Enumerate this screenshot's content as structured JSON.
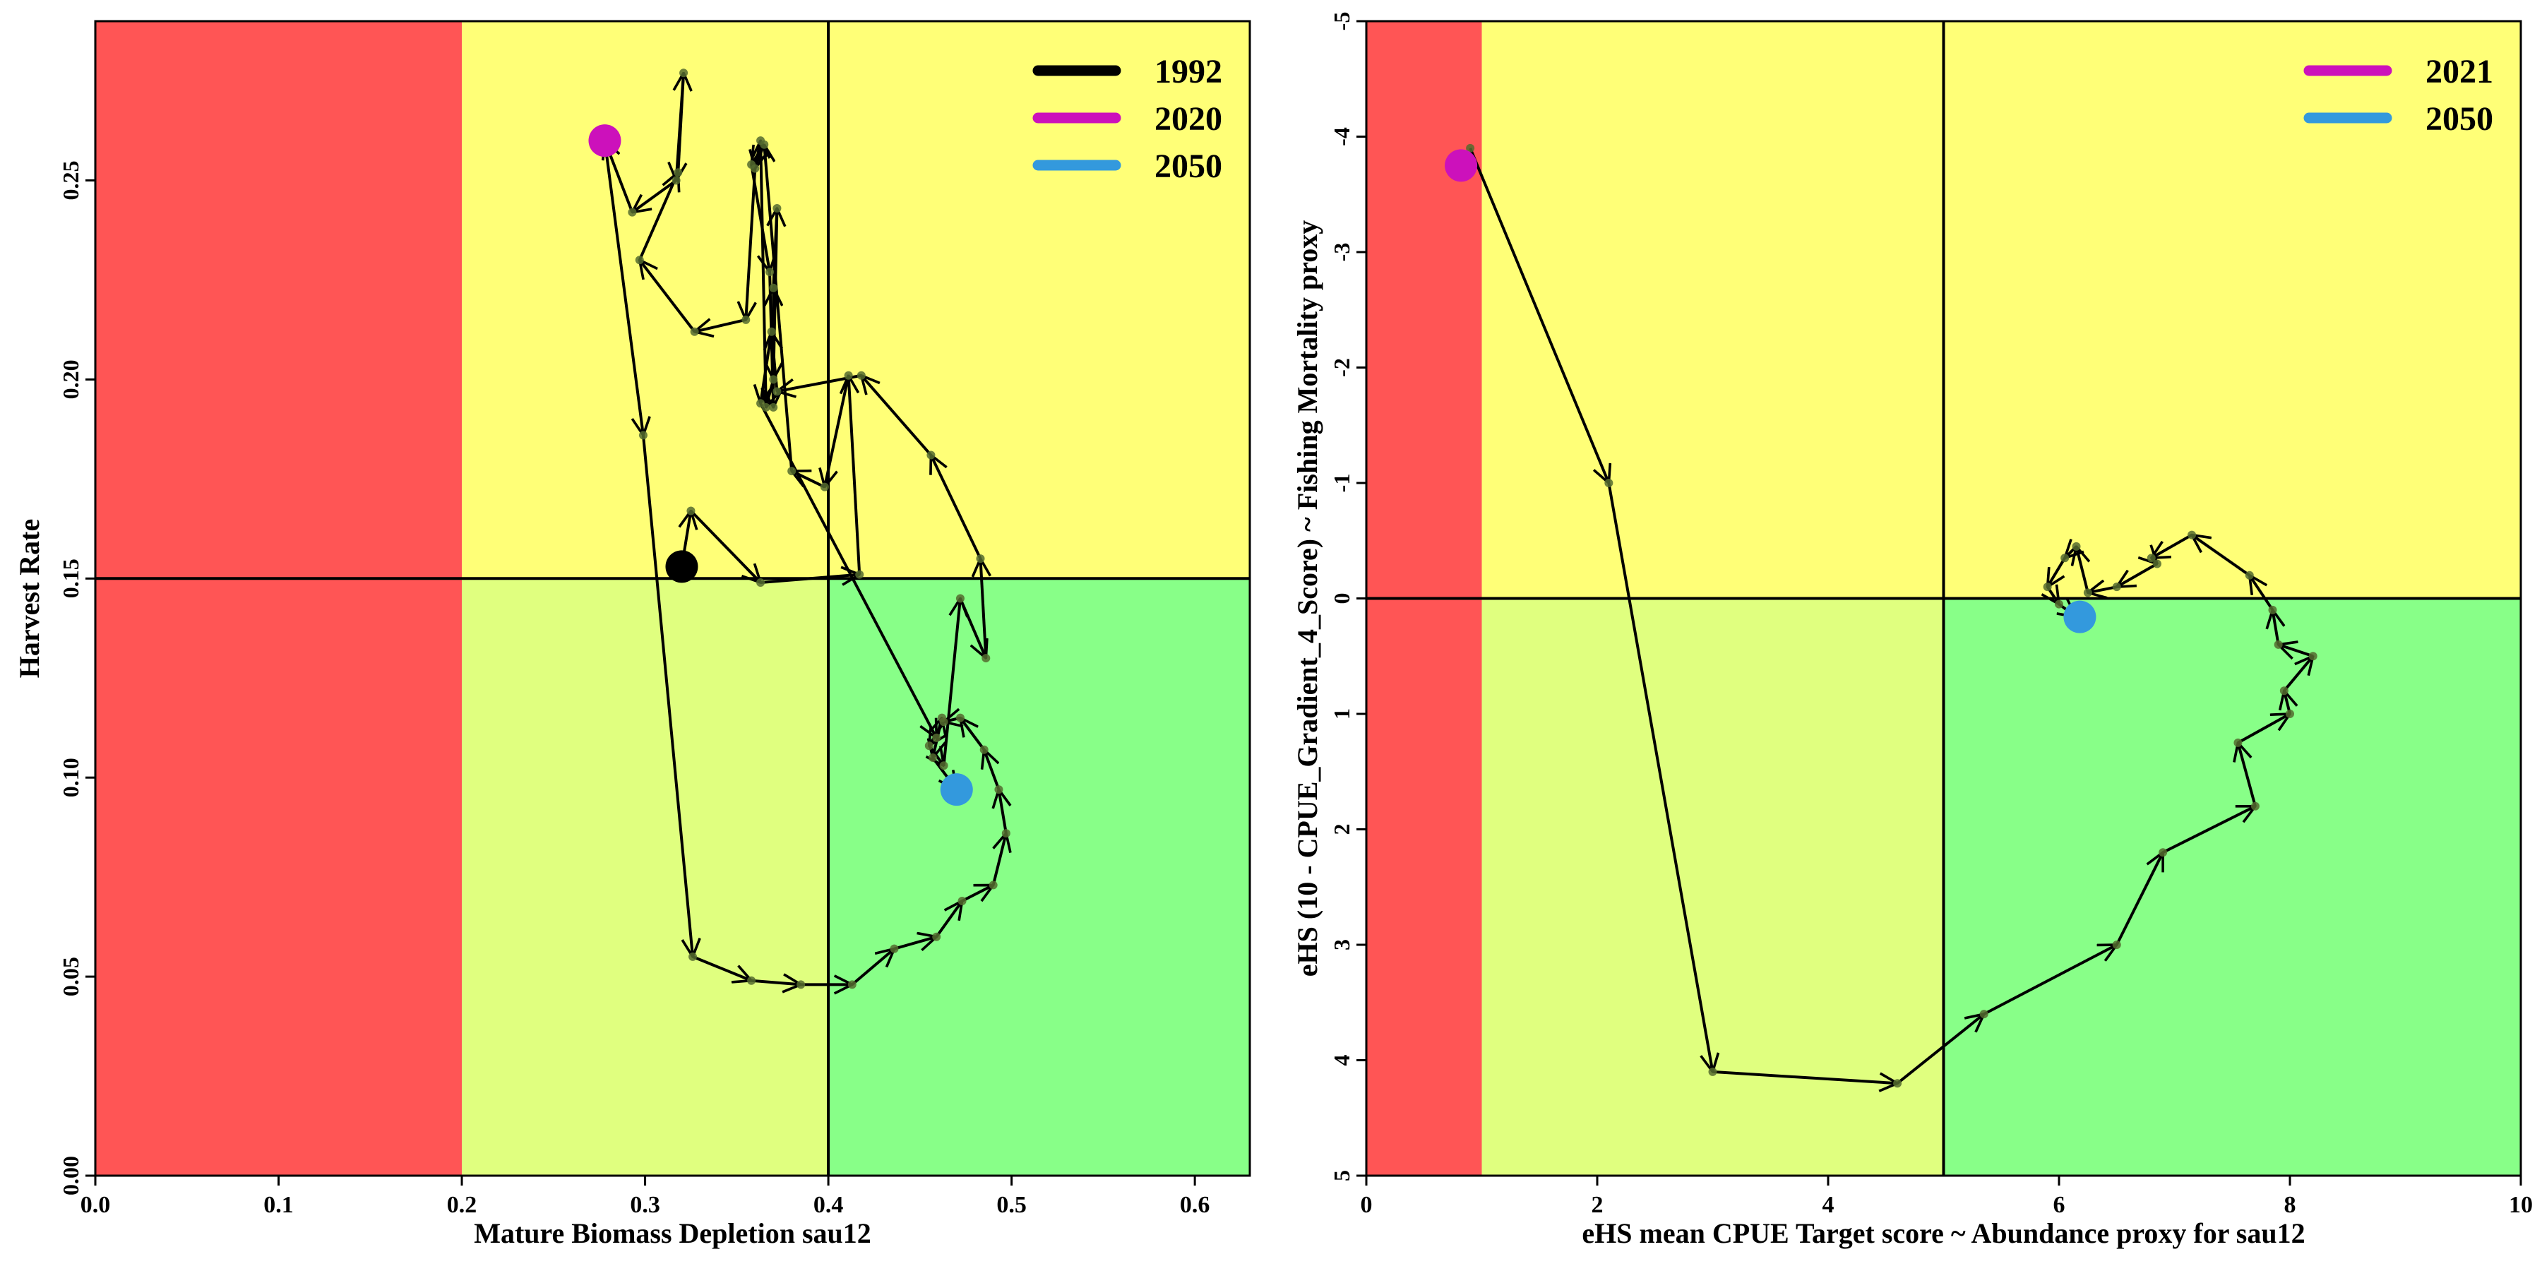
{
  "chart_data": [
    {
      "type": "scatter",
      "title": "",
      "xlabel": "Mature Biomass Depletion sau12",
      "ylabel": "Harvest Rate",
      "xlim": [
        0,
        0.63
      ],
      "ylim": [
        0,
        0.29
      ],
      "xticks": [
        0.0,
        0.1,
        0.2,
        0.3,
        0.4,
        0.5,
        0.6
      ],
      "xtick_labels": [
        "0.0",
        "0.1",
        "0.2",
        "0.3",
        "0.4",
        "0.5",
        "0.6"
      ],
      "yticks": [
        0.0,
        0.05,
        0.1,
        0.15,
        0.2,
        0.25
      ],
      "ytick_labels": [
        "0.00",
        "0.05",
        "0.10",
        "0.15",
        "0.20",
        "0.25"
      ],
      "grid": false,
      "legend_position": "top-right",
      "zones": [
        {
          "x": [
            0,
            0.2
          ],
          "y": [
            0,
            0.29
          ],
          "color": "#ff5555"
        },
        {
          "x": [
            0.2,
            0.63
          ],
          "y": [
            0.15,
            0.29
          ],
          "color": "#ffff77"
        },
        {
          "x": [
            0.2,
            0.4
          ],
          "y": [
            0,
            0.15
          ],
          "color": "#e0ff7f"
        },
        {
          "x": [
            0.4,
            0.63
          ],
          "y": [
            0,
            0.15
          ],
          "color": "#88ff88"
        }
      ],
      "reference_lines": {
        "x": 0.4,
        "y": 0.15
      },
      "legend": [
        {
          "label": "1992",
          "color": "#000000"
        },
        {
          "label": "2020",
          "color": "#cc11bb"
        },
        {
          "label": "2050",
          "color": "#3399dd"
        }
      ],
      "highlights": [
        {
          "label": "1992",
          "x": 0.32,
          "y": 0.153,
          "color": "#000000"
        },
        {
          "label": "2020",
          "x": 0.278,
          "y": 0.26,
          "color": "#cc11bb"
        },
        {
          "label": "2050",
          "x": 0.47,
          "y": 0.097,
          "color": "#3399dd"
        }
      ],
      "point_color": "#556b2f",
      "trajectory": [
        [
          0.32,
          0.153
        ],
        [
          0.325,
          0.167
        ],
        [
          0.363,
          0.149
        ],
        [
          0.417,
          0.151
        ],
        [
          0.411,
          0.201
        ],
        [
          0.398,
          0.173
        ],
        [
          0.38,
          0.177
        ],
        [
          0.365,
          0.259
        ],
        [
          0.358,
          0.254
        ],
        [
          0.368,
          0.227
        ],
        [
          0.37,
          0.193
        ],
        [
          0.37,
          0.223
        ],
        [
          0.372,
          0.243
        ],
        [
          0.37,
          0.2
        ],
        [
          0.366,
          0.193
        ],
        [
          0.363,
          0.26
        ],
        [
          0.36,
          0.253
        ],
        [
          0.355,
          0.215
        ],
        [
          0.327,
          0.212
        ],
        [
          0.297,
          0.23
        ],
        [
          0.318,
          0.252
        ],
        [
          0.321,
          0.277
        ],
        [
          0.317,
          0.25
        ],
        [
          0.293,
          0.242
        ],
        [
          0.278,
          0.26
        ],
        [
          0.299,
          0.186
        ],
        [
          0.326,
          0.055
        ],
        [
          0.358,
          0.049
        ],
        [
          0.385,
          0.048
        ],
        [
          0.413,
          0.048
        ],
        [
          0.436,
          0.057
        ],
        [
          0.459,
          0.06
        ],
        [
          0.473,
          0.069
        ],
        [
          0.49,
          0.073
        ],
        [
          0.497,
          0.086
        ],
        [
          0.493,
          0.097
        ],
        [
          0.485,
          0.107
        ],
        [
          0.472,
          0.115
        ],
        [
          0.463,
          0.114
        ],
        [
          0.455,
          0.108
        ],
        [
          0.463,
          0.103
        ],
        [
          0.472,
          0.145
        ],
        [
          0.486,
          0.13
        ],
        [
          0.483,
          0.155
        ],
        [
          0.456,
          0.181
        ],
        [
          0.418,
          0.201
        ],
        [
          0.372,
          0.197
        ],
        [
          0.369,
          0.212
        ],
        [
          0.363,
          0.194
        ],
        [
          0.459,
          0.11
        ],
        [
          0.462,
          0.115
        ],
        [
          0.457,
          0.105
        ],
        [
          0.47,
          0.097
        ]
      ]
    },
    {
      "type": "scatter",
      "title": "",
      "xlabel": "eHS mean CPUE Target score ~ Abundance proxy for sau12",
      "ylabel": "eHS (10 - CPUE_Gradient_4_Score) ~ Fishing Mortality proxy",
      "xlim": [
        0,
        10
      ],
      "ylim": [
        5,
        -5
      ],
      "y_reversed": true,
      "xticks": [
        0,
        2,
        4,
        6,
        8,
        10
      ],
      "xtick_labels": [
        "0",
        "2",
        "4",
        "6",
        "8",
        "10"
      ],
      "yticks": [
        5,
        4,
        3,
        2,
        1,
        0,
        -1,
        -2,
        -3,
        -4,
        -5
      ],
      "ytick_labels": [
        "5",
        "4",
        "3",
        "2",
        "1",
        "0",
        "-1",
        "-2",
        "-3",
        "-4",
        "-5"
      ],
      "grid": false,
      "legend_position": "top-right",
      "zones": [
        {
          "x": [
            0,
            1
          ],
          "y": [
            5,
            -5
          ],
          "color": "#ff5555"
        },
        {
          "x": [
            1,
            10
          ],
          "y": [
            0,
            -5
          ],
          "color": "#ffff77"
        },
        {
          "x": [
            1,
            5
          ],
          "y": [
            5,
            0
          ],
          "color": "#e0ff7f"
        },
        {
          "x": [
            5,
            10
          ],
          "y": [
            5,
            0
          ],
          "color": "#88ff88"
        }
      ],
      "reference_lines": {
        "x": 5,
        "y": 0
      },
      "legend": [
        {
          "label": "2021",
          "color": "#cc11bb"
        },
        {
          "label": "2050",
          "color": "#3399dd"
        }
      ],
      "highlights": [
        {
          "label": "2021",
          "x": 0.82,
          "y": -3.75,
          "color": "#cc11bb"
        },
        {
          "label": "2050",
          "x": 6.18,
          "y": 0.16,
          "color": "#3399dd"
        }
      ],
      "point_color": "#556b2f",
      "trajectory": [
        [
          0.9,
          -3.9
        ],
        [
          2.1,
          -1.0
        ],
        [
          3.0,
          4.1
        ],
        [
          4.6,
          4.2
        ],
        [
          5.35,
          3.6
        ],
        [
          6.5,
          3.0
        ],
        [
          6.9,
          2.2
        ],
        [
          7.7,
          1.8
        ],
        [
          7.55,
          1.25
        ],
        [
          8.0,
          1.0
        ],
        [
          7.95,
          0.8
        ],
        [
          8.2,
          0.5
        ],
        [
          7.9,
          0.4
        ],
        [
          7.85,
          0.1
        ],
        [
          7.65,
          -0.2
        ],
        [
          7.15,
          -0.55
        ],
        [
          6.8,
          -0.35
        ],
        [
          6.85,
          -0.3
        ],
        [
          6.5,
          -0.1
        ],
        [
          6.25,
          -0.05
        ],
        [
          6.15,
          -0.45
        ],
        [
          6.05,
          -0.35
        ],
        [
          5.9,
          -0.1
        ],
        [
          6.0,
          0.05
        ],
        [
          6.15,
          0.16
        ]
      ]
    }
  ]
}
